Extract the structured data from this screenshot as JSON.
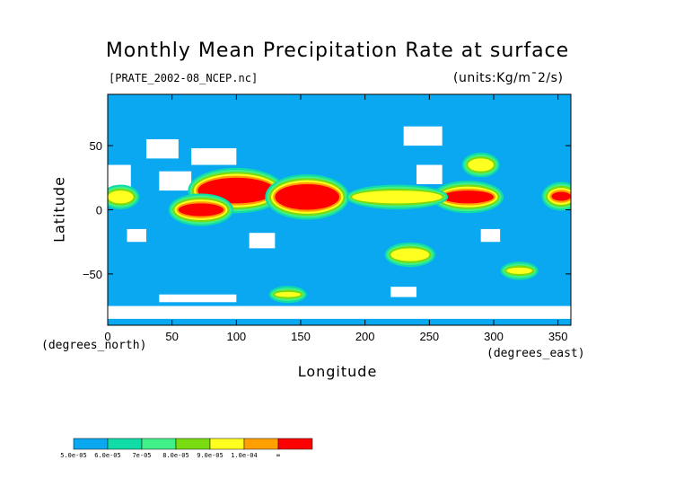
{
  "chart_data": {
    "type": "heatmap",
    "title": "Monthly Mean Precipitation Rate at surface",
    "subtitle_left": "[PRATE_2002-08_NCEP.nc]",
    "subtitle_right": "(units:Kg/m¯2/s)",
    "xlabel": "Longitude",
    "xlabel_units": "(degrees_east)",
    "ylabel": "Latitude",
    "ylabel_units": "(degrees_north)",
    "xlim": [
      0,
      360
    ],
    "ylim": [
      -90,
      90
    ],
    "x_ticks": [
      0,
      50,
      100,
      150,
      200,
      250,
      300,
      350
    ],
    "y_ticks": [
      50,
      0,
      -50
    ],
    "x_tick_labels": [
      "0",
      "50",
      "100",
      "150",
      "200",
      "250",
      "300",
      "350"
    ],
    "y_tick_labels": [
      "50",
      "0",
      "−50"
    ],
    "colorbar": {
      "labels": [
        "5.0e-05",
        "6.0e-05",
        "7e-05",
        "8.0e-05",
        "9.0e-05",
        "1.0e-04",
        "∞"
      ],
      "colors": [
        "#0aa8f0",
        "#10dca8",
        "#40f088",
        "#78dc10",
        "#ffff20",
        "#ffa000",
        "#ff0000"
      ]
    },
    "background_color": "#0aa8f0",
    "below_threshold_color": "#ffffff",
    "regions": [
      {
        "level": 6,
        "lon": [
          70,
          130
        ],
        "lat": [
          5,
          25
        ]
      },
      {
        "level": 6,
        "lon": [
          130,
          180
        ],
        "lat": [
          0,
          20
        ]
      },
      {
        "level": 6,
        "lon": [
          55,
          90
        ],
        "lat": [
          -5,
          5
        ]
      },
      {
        "level": 6,
        "lon": [
          260,
          300
        ],
        "lat": [
          5,
          15
        ]
      },
      {
        "level": 6,
        "lon": [
          345,
          360
        ],
        "lat": [
          7,
          14
        ]
      },
      {
        "level": 4,
        "lon": [
          190,
          260
        ],
        "lat": [
          5,
          15
        ]
      },
      {
        "level": 4,
        "lon": [
          0,
          20
        ],
        "lat": [
          5,
          15
        ]
      },
      {
        "level": 4,
        "lon": [
          280,
          300
        ],
        "lat": [
          30,
          40
        ]
      },
      {
        "level": 4,
        "lon": [
          220,
          250
        ],
        "lat": [
          -40,
          -30
        ]
      },
      {
        "level": 4,
        "lon": [
          130,
          150
        ],
        "lat": [
          -68,
          -64
        ]
      },
      {
        "level": 4,
        "lon": [
          310,
          330
        ],
        "lat": [
          -50,
          -45
        ]
      }
    ],
    "grid": false
  }
}
